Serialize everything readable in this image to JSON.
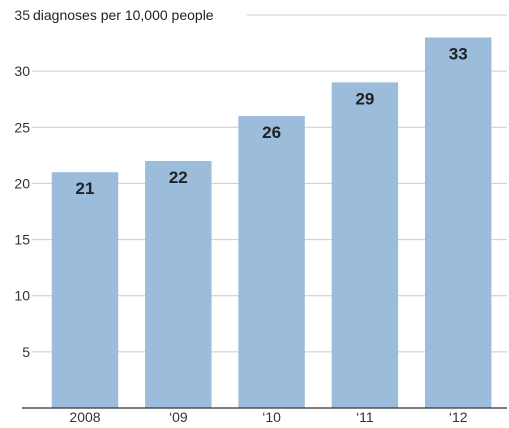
{
  "chart_data": {
    "type": "bar",
    "categories": [
      "2008",
      "‘09",
      "‘10",
      "‘11",
      "‘12"
    ],
    "values": [
      21,
      22,
      26,
      29,
      33
    ],
    "data_labels": [
      "21",
      "22",
      "26",
      "29",
      "33"
    ],
    "title": "",
    "ylabel": "diagnoses per 10,000 people",
    "xlabel": "",
    "ylim": [
      0,
      35
    ],
    "yticks": [
      "5",
      "10",
      "15",
      "20",
      "25",
      "30",
      "35"
    ],
    "grid": true,
    "bar_color": "#9bbcdb",
    "grid_color": "#cccccc",
    "axis_color": "#333333"
  }
}
